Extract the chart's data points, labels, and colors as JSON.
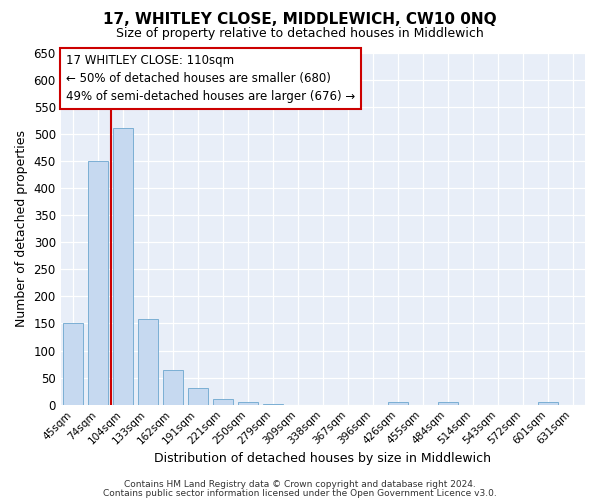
{
  "title": "17, WHITLEY CLOSE, MIDDLEWICH, CW10 0NQ",
  "subtitle": "Size of property relative to detached houses in Middlewich",
  "xlabel": "Distribution of detached houses by size in Middlewich",
  "ylabel": "Number of detached properties",
  "categories": [
    "45sqm",
    "74sqm",
    "104sqm",
    "133sqm",
    "162sqm",
    "191sqm",
    "221sqm",
    "250sqm",
    "279sqm",
    "309sqm",
    "338sqm",
    "367sqm",
    "396sqm",
    "426sqm",
    "455sqm",
    "484sqm",
    "514sqm",
    "543sqm",
    "572sqm",
    "601sqm",
    "631sqm"
  ],
  "values": [
    150,
    450,
    510,
    158,
    65,
    30,
    10,
    5,
    2,
    0,
    0,
    0,
    0,
    5,
    0,
    5,
    0,
    0,
    0,
    5,
    0
  ],
  "bar_color": "#c6d9f0",
  "bar_edgecolor": "#7bafd4",
  "vline_x": 1.5,
  "vline_color": "#cc0000",
  "ylim": [
    0,
    650
  ],
  "yticks": [
    0,
    50,
    100,
    150,
    200,
    250,
    300,
    350,
    400,
    450,
    500,
    550,
    600,
    650
  ],
  "annotation_title": "17 WHITLEY CLOSE: 110sqm",
  "annotation_line1": "← 50% of detached houses are smaller (680)",
  "annotation_line2": "49% of semi-detached houses are larger (676) →",
  "annotation_box_edgecolor": "#cc0000",
  "footer1": "Contains HM Land Registry data © Crown copyright and database right 2024.",
  "footer2": "Contains public sector information licensed under the Open Government Licence v3.0.",
  "plot_bg_color": "#e8eef8",
  "fig_bg_color": "#ffffff",
  "grid_color": "#ffffff",
  "figsize": [
    6.0,
    5.0
  ],
  "dpi": 100
}
